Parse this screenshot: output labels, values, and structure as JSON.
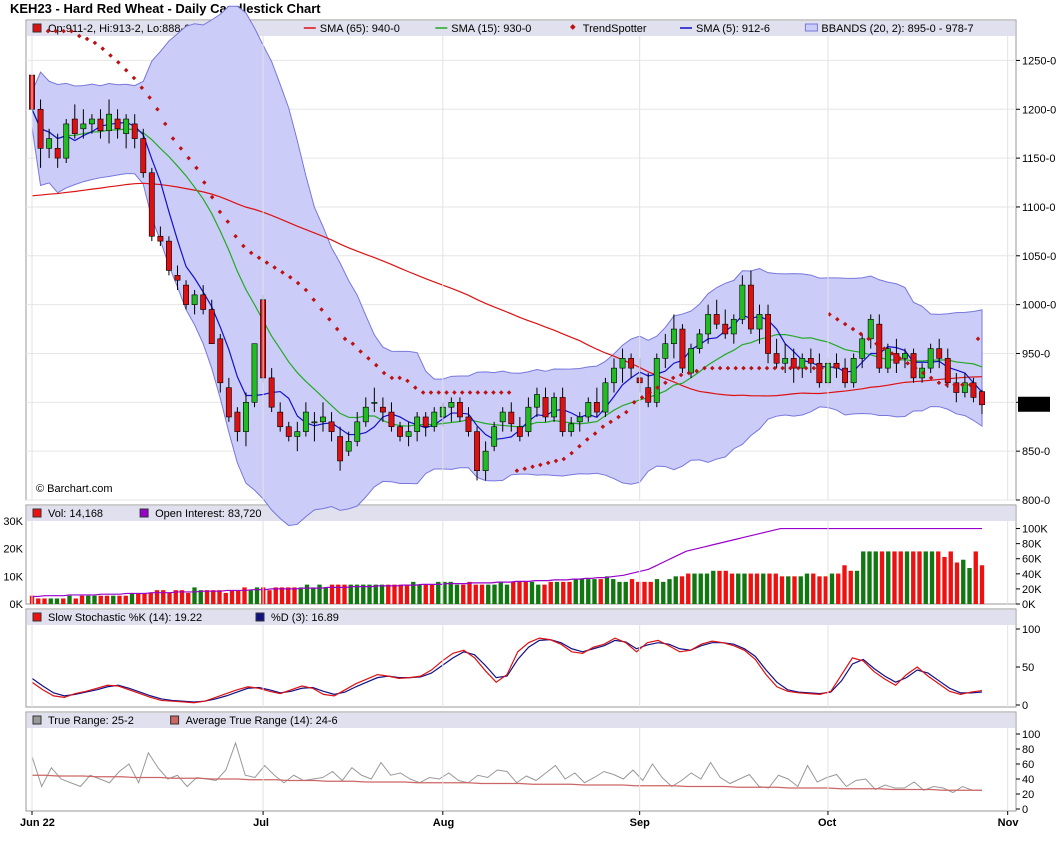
{
  "title": "KEH23 - Hard Red Wheat - Daily Candlestick Chart",
  "watermark": "© Barchart.com",
  "colors": {
    "up": "#22bb22",
    "down": "#dd1111",
    "sma65": "#dd1111",
    "sma15": "#22aa22",
    "trendspotter": "#bb1111",
    "sma5": "#1111cc",
    "bbands_fill": "#ccccf8",
    "bbands_line": "#7777dd",
    "vol_up": "#117711",
    "vol_down": "#ee1111",
    "open_interest": "#9900cc",
    "stoch_k": "#dd1111",
    "stoch_d": "#111188",
    "true_range": "#999999",
    "atr": "#cc6666",
    "panel_header": "#e0e0ee"
  },
  "x_axis": {
    "labels": [
      "Jun 22",
      "Jul",
      "Aug",
      "Sep",
      "Oct",
      "Nov"
    ]
  },
  "price_panel": {
    "legend": [
      {
        "icon": "candle",
        "text": "Op:911-2, Hi:913-2, Lo:888-0, Cl:897-4"
      },
      {
        "icon": "line-red",
        "text": "SMA (65): 940-0"
      },
      {
        "icon": "line-green",
        "text": "SMA (15): 930-0"
      },
      {
        "icon": "dot",
        "text": "TrendSpotter"
      },
      {
        "icon": "line-blue",
        "text": "SMA (5): 912-6"
      },
      {
        "icon": "band",
        "text": "BBANDS (20, 2): 895-0 - 978-7"
      }
    ],
    "y_ticks": [
      "1250-0",
      "1200-0",
      "1150-0",
      "1100-0",
      "1050-0",
      "1000-0",
      "950-0",
      "900-0",
      "850-0",
      "800-0"
    ],
    "last_price": "897-4"
  },
  "volume_panel": {
    "legend": [
      {
        "icon": "bar-red",
        "text": "Vol: 14,168"
      },
      {
        "icon": "bar-purple",
        "text": "Open Interest: 83,720"
      }
    ],
    "left_ticks": [
      "30K",
      "20K",
      "10K",
      "0K"
    ],
    "right_ticks": [
      "100K",
      "80K",
      "60K",
      "40K",
      "20K",
      "0K"
    ]
  },
  "stoch_panel": {
    "legend": [
      {
        "icon": "bar-red",
        "text": "Slow Stochastic %K (14): 19.22"
      },
      {
        "icon": "bar-navy",
        "text": "%D (3): 16.89"
      }
    ],
    "y_ticks": [
      "100",
      "50",
      "0"
    ]
  },
  "tr_panel": {
    "legend": [
      {
        "icon": "bar-gray",
        "text": "True Range: 25-2"
      },
      {
        "icon": "bar-rose",
        "text": "Average True Range (14): 24-6"
      }
    ],
    "y_ticks": [
      "100",
      "80",
      "60",
      "40",
      "20",
      "0"
    ]
  },
  "chart_data": {
    "type": "candlestick",
    "price_unit": "cents/bushel",
    "ylim_price": [
      800,
      1275
    ],
    "month_starts": {
      "Jun 22": 0,
      "Jul": 27,
      "Aug": 48,
      "Sep": 71,
      "Oct": 93,
      "Nov": 114
    },
    "candles": [
      [
        1235,
        1240,
        1195,
        1200
      ],
      [
        1200,
        1210,
        1140,
        1160
      ],
      [
        1160,
        1180,
        1150,
        1170
      ],
      [
        1160,
        1175,
        1140,
        1150
      ],
      [
        1150,
        1190,
        1145,
        1185
      ],
      [
        1190,
        1205,
        1170,
        1175
      ],
      [
        1180,
        1200,
        1170,
        1185
      ],
      [
        1185,
        1195,
        1175,
        1190
      ],
      [
        1190,
        1200,
        1170,
        1178
      ],
      [
        1178,
        1210,
        1165,
        1195
      ],
      [
        1190,
        1200,
        1170,
        1180
      ],
      [
        1175,
        1195,
        1160,
        1190
      ],
      [
        1185,
        1195,
        1160,
        1170
      ],
      [
        1170,
        1180,
        1130,
        1135
      ],
      [
        1135,
        1140,
        1065,
        1070
      ],
      [
        1070,
        1080,
        1060,
        1065
      ],
      [
        1065,
        1070,
        1030,
        1035
      ],
      [
        1030,
        1040,
        1015,
        1025
      ],
      [
        1020,
        1025,
        995,
        1000
      ],
      [
        1000,
        1015,
        990,
        1010
      ],
      [
        1010,
        1020,
        990,
        995
      ],
      [
        995,
        1005,
        960,
        960
      ],
      [
        965,
        970,
        910,
        920
      ],
      [
        915,
        925,
        880,
        885
      ],
      [
        890,
        895,
        860,
        870
      ],
      [
        870,
        910,
        855,
        900
      ],
      [
        900,
        960,
        895,
        960
      ],
      [
        1005,
        1010,
        920,
        925
      ],
      [
        925,
        935,
        890,
        895
      ],
      [
        890,
        900,
        870,
        875
      ],
      [
        875,
        880,
        860,
        865
      ],
      [
        865,
        880,
        850,
        870
      ],
      [
        870,
        900,
        865,
        890
      ],
      [
        880,
        890,
        860,
        880
      ],
      [
        880,
        900,
        870,
        885
      ],
      [
        880,
        890,
        860,
        870
      ],
      [
        865,
        875,
        830,
        840
      ],
      [
        850,
        870,
        845,
        860
      ],
      [
        860,
        890,
        855,
        880
      ],
      [
        880,
        905,
        875,
        895
      ],
      [
        900,
        915,
        890,
        900
      ],
      [
        895,
        905,
        880,
        890
      ],
      [
        890,
        900,
        870,
        875
      ],
      [
        875,
        880,
        860,
        865
      ],
      [
        865,
        880,
        855,
        870
      ],
      [
        870,
        890,
        860,
        885
      ],
      [
        885,
        890,
        865,
        875
      ],
      [
        875,
        895,
        870,
        890
      ],
      [
        885,
        900,
        875,
        895
      ],
      [
        895,
        905,
        880,
        900
      ],
      [
        900,
        905,
        880,
        885
      ],
      [
        885,
        895,
        865,
        870
      ],
      [
        870,
        875,
        820,
        830
      ],
      [
        830,
        860,
        820,
        850
      ],
      [
        855,
        880,
        850,
        875
      ],
      [
        880,
        895,
        870,
        890
      ],
      [
        890,
        900,
        870,
        878
      ],
      [
        875,
        885,
        860,
        865
      ],
      [
        870,
        905,
        865,
        895
      ],
      [
        895,
        915,
        885,
        908
      ],
      [
        905,
        915,
        880,
        885
      ],
      [
        885,
        910,
        880,
        905
      ],
      [
        905,
        915,
        865,
        870
      ],
      [
        870,
        885,
        865,
        878
      ],
      [
        880,
        890,
        870,
        885
      ],
      [
        885,
        905,
        880,
        900
      ],
      [
        900,
        915,
        885,
        890
      ],
      [
        890,
        925,
        885,
        920
      ],
      [
        920,
        945,
        910,
        935
      ],
      [
        935,
        955,
        920,
        945
      ],
      [
        945,
        950,
        925,
        935
      ],
      [
        925,
        945,
        910,
        920
      ],
      [
        915,
        930,
        895,
        900
      ],
      [
        900,
        950,
        895,
        945
      ],
      [
        945,
        970,
        935,
        960
      ],
      [
        960,
        990,
        945,
        975
      ],
      [
        975,
        980,
        930,
        935
      ],
      [
        930,
        960,
        925,
        955
      ],
      [
        955,
        975,
        950,
        970
      ],
      [
        970,
        1000,
        960,
        990
      ],
      [
        990,
        1005,
        975,
        980
      ],
      [
        980,
        995,
        965,
        970
      ],
      [
        970,
        990,
        960,
        985
      ],
      [
        985,
        1030,
        980,
        1020
      ],
      [
        1020,
        1035,
        970,
        975
      ],
      [
        975,
        1000,
        960,
        990
      ],
      [
        990,
        1000,
        940,
        950
      ],
      [
        950,
        965,
        935,
        940
      ],
      [
        940,
        960,
        930,
        945
      ],
      [
        945,
        955,
        920,
        935
      ],
      [
        935,
        950,
        925,
        945
      ],
      [
        945,
        955,
        930,
        940
      ],
      [
        940,
        950,
        915,
        920
      ],
      [
        920,
        945,
        915,
        940
      ],
      [
        940,
        950,
        925,
        935
      ],
      [
        935,
        945,
        915,
        920
      ],
      [
        920,
        950,
        915,
        945
      ],
      [
        945,
        970,
        935,
        965
      ],
      [
        965,
        990,
        955,
        985
      ],
      [
        980,
        990,
        930,
        935
      ],
      [
        935,
        960,
        930,
        955
      ],
      [
        950,
        965,
        930,
        940
      ],
      [
        945,
        955,
        935,
        950
      ],
      [
        950,
        955,
        920,
        925
      ],
      [
        925,
        940,
        920,
        935
      ],
      [
        935,
        960,
        930,
        955
      ],
      [
        955,
        965,
        935,
        945
      ],
      [
        945,
        955,
        915,
        920
      ],
      [
        920,
        930,
        900,
        910
      ],
      [
        910,
        930,
        905,
        920
      ],
      [
        920,
        925,
        900,
        905
      ],
      [
        911,
        913,
        888,
        897.5
      ]
    ],
    "trendspotter": [
      1280,
      1280,
      1280,
      1280,
      1275,
      1272,
      1268,
      1262,
      1255,
      1248,
      1240,
      1232,
      1222,
      1212,
      1200,
      1185,
      1170,
      1160,
      1150,
      1140,
      1125,
      1110,
      1095,
      1085,
      1070,
      1060,
      1053,
      1048,
      1043,
      1038,
      1033,
      1028,
      1022,
      1015,
      1005,
      995,
      985,
      975,
      965,
      960,
      952,
      945,
      938,
      930,
      925,
      925,
      922,
      915,
      910,
      910,
      910,
      910,
      910,
      910,
      910,
      910,
      910,
      910,
      910,
      910,
      830,
      832,
      834,
      836,
      838,
      840,
      842,
      848,
      855,
      862,
      868,
      875,
      880,
      885,
      890,
      900,
      905,
      910,
      915,
      920,
      925,
      928,
      930,
      932,
      935,
      935,
      935,
      935,
      935,
      935,
      935,
      935,
      935,
      935,
      935,
      935,
      935,
      935,
      935,
      935,
      990,
      985,
      980,
      975,
      970,
      965,
      960,
      955,
      950,
      945,
      940,
      935,
      930,
      925,
      920,
      918,
      918,
      918,
      918,
      965
    ],
    "volume_k": [
      3,
      2,
      2,
      2,
      2,
      2,
      3,
      2,
      3,
      3,
      3,
      3,
      3,
      3,
      3,
      3,
      4,
      4,
      4,
      4,
      5,
      5,
      4,
      5,
      5,
      4,
      6,
      5,
      5,
      5,
      5,
      4,
      5,
      5,
      6,
      5,
      6,
      6,
      5,
      6,
      6,
      6,
      6,
      6,
      7,
      6,
      7,
      6,
      7,
      7,
      7,
      7,
      7,
      7,
      7,
      7,
      7,
      7,
      7,
      7,
      7,
      8,
      7,
      7,
      7,
      8,
      8,
      8,
      7,
      7,
      8,
      7,
      7,
      7,
      7,
      8,
      7,
      8,
      8,
      8,
      8,
      7,
      7,
      8,
      8,
      8,
      8,
      9,
      9,
      9,
      9,
      9,
      10,
      9,
      8,
      8,
      9,
      8,
      8,
      8,
      9,
      8,
      9,
      10,
      10,
      11,
      11,
      11,
      11,
      12,
      12,
      12,
      11,
      11,
      11,
      11,
      11,
      11,
      11,
      11,
      10,
      10,
      10,
      10,
      11,
      11,
      10,
      10,
      11,
      11,
      14,
      12,
      12,
      19,
      19,
      19,
      19,
      19,
      19,
      19,
      19,
      19,
      19,
      19,
      19,
      19,
      17,
      19,
      15,
      16,
      13,
      19,
      14
    ],
    "open_interest_k": [
      10,
      10,
      11,
      11,
      11,
      11,
      12,
      12,
      12,
      12,
      12,
      13,
      13,
      13,
      13,
      14,
      14,
      14,
      14,
      15,
      15,
      15,
      15,
      16,
      16,
      16,
      16,
      17,
      17,
      17,
      17,
      18,
      18,
      18,
      18,
      19,
      19,
      19,
      20,
      20,
      20,
      20,
      20,
      21,
      21,
      21,
      21,
      22,
      22,
      22,
      22,
      23,
      23,
      23,
      23,
      24,
      24,
      24,
      24,
      25,
      25,
      25,
      26,
      26,
      26,
      26,
      27,
      27,
      27,
      27,
      28,
      28,
      28,
      28,
      29,
      29,
      29,
      30,
      30,
      30,
      31,
      31,
      31,
      32,
      32,
      32,
      33,
      33,
      34,
      34,
      35,
      35,
      36,
      37,
      38,
      40,
      42,
      44,
      46,
      50,
      54,
      58,
      62,
      66,
      70,
      72,
      74,
      76,
      78,
      80,
      82,
      84,
      86,
      88,
      90,
      92,
      94,
      96,
      98,
      100,
      100,
      100,
      100,
      100,
      100,
      100,
      100,
      100,
      100,
      100,
      100,
      100,
      100,
      100,
      100,
      100,
      100,
      100,
      100,
      100,
      100,
      100,
      100,
      100,
      100,
      100,
      100,
      100,
      100,
      100,
      100,
      100
    ],
    "stoch_k": [
      30,
      20,
      12,
      10,
      15,
      18,
      22,
      26,
      25,
      20,
      15,
      10,
      6,
      5,
      4,
      3,
      5,
      10,
      15,
      20,
      24,
      22,
      18,
      15,
      20,
      25,
      22,
      14,
      12,
      20,
      28,
      34,
      40,
      38,
      35,
      36,
      38,
      46,
      58,
      68,
      72,
      62,
      45,
      30,
      40,
      70,
      82,
      88,
      86,
      80,
      70,
      68,
      76,
      80,
      88,
      82,
      70,
      82,
      85,
      78,
      70,
      72,
      80,
      84,
      82,
      78,
      72,
      60,
      40,
      24,
      18,
      16,
      15,
      14,
      18,
      40,
      62,
      58,
      44,
      34,
      26,
      40,
      50,
      38,
      28,
      18,
      14,
      17,
      19
    ],
    "stoch_d": [
      35,
      25,
      16,
      12,
      14,
      17,
      20,
      24,
      26,
      22,
      17,
      12,
      8,
      6,
      5,
      4,
      5,
      8,
      12,
      17,
      22,
      23,
      20,
      16,
      18,
      22,
      23,
      18,
      14,
      17,
      24,
      30,
      36,
      38,
      36,
      36,
      37,
      42,
      52,
      62,
      70,
      66,
      52,
      36,
      38,
      60,
      76,
      85,
      86,
      82,
      74,
      70,
      74,
      78,
      85,
      83,
      74,
      79,
      82,
      80,
      74,
      72,
      78,
      82,
      82,
      80,
      74,
      64,
      46,
      30,
      20,
      17,
      16,
      15,
      17,
      32,
      54,
      60,
      48,
      38,
      30,
      36,
      46,
      42,
      32,
      22,
      16,
      16,
      17
    ],
    "true_range": [
      70,
      30,
      55,
      40,
      35,
      30,
      45,
      40,
      35,
      50,
      60,
      35,
      75,
      55,
      40,
      45,
      30,
      42,
      40,
      38,
      52,
      88,
      45,
      42,
      58,
      45,
      35,
      45,
      38,
      40,
      42,
      50,
      38,
      55,
      45,
      40,
      62,
      45,
      48,
      40,
      35,
      42,
      40,
      48,
      38,
      35,
      45,
      42,
      52,
      50,
      35,
      44,
      38,
      48,
      58,
      40,
      48,
      35,
      42,
      50,
      46,
      40,
      52,
      38,
      60,
      42,
      30,
      38,
      48,
      40,
      62,
      42,
      34,
      40,
      46,
      30,
      28,
      45,
      40,
      30,
      58,
      36,
      42,
      46,
      30,
      38,
      40,
      26,
      32,
      28,
      28,
      36,
      25,
      30,
      28,
      22,
      30,
      25,
      25
    ],
    "atr": [
      45,
      45,
      44,
      44,
      44,
      43,
      43,
      43,
      42,
      42,
      42,
      41,
      41,
      41,
      40,
      40,
      40,
      39,
      39,
      39,
      38,
      38,
      38,
      37,
      37,
      37,
      36,
      36,
      36,
      36,
      35,
      35,
      35,
      35,
      35,
      34,
      34,
      34,
      34,
      33,
      33,
      33,
      33,
      32,
      32,
      32,
      32,
      31,
      31,
      31,
      31,
      30,
      30,
      30,
      30,
      29,
      29,
      29,
      29,
      28,
      28,
      28,
      28,
      27,
      27,
      27,
      27,
      26,
      26,
      26,
      26,
      25,
      25,
      25,
      25
    ]
  }
}
